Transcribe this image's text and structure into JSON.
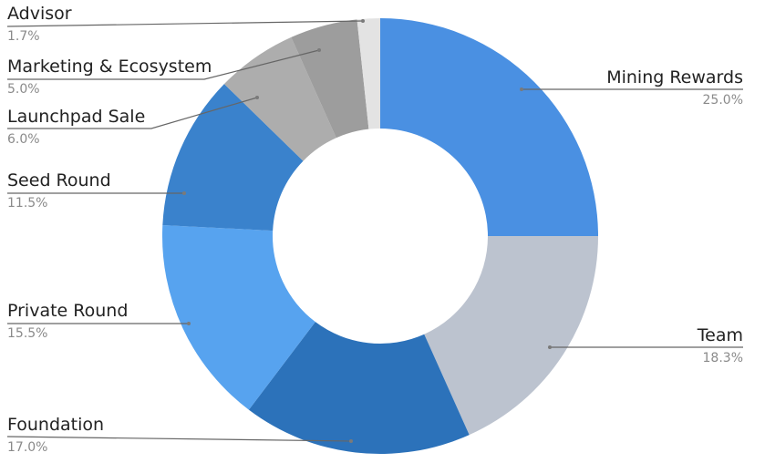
{
  "chart_data": {
    "type": "pie",
    "subtype": "donut",
    "title": "",
    "center": [
      417,
      259
    ],
    "outer_radius": 239,
    "inner_radius": 118,
    "start_angle_deg": 0,
    "direction": "clockwise",
    "slices": [
      {
        "label": "Mining Rewards",
        "value": 25.0,
        "pct_text": "25.0%",
        "color": "#4a90e2"
      },
      {
        "label": "Team",
        "value": 18.3,
        "pct_text": "18.3%",
        "color": "#bcc3cf"
      },
      {
        "label": "Foundation",
        "value": 17.0,
        "pct_text": "17.0%",
        "color": "#2c72ba"
      },
      {
        "label": "Private Round",
        "value": 15.5,
        "pct_text": "15.5%",
        "color": "#57a3ef"
      },
      {
        "label": "Seed Round",
        "value": 11.5,
        "pct_text": "11.5%",
        "color": "#3a82cc"
      },
      {
        "label": "Launchpad Sale",
        "value": 6.0,
        "pct_text": "6.0%",
        "color": "#adadad"
      },
      {
        "label": "Marketing & Ecosystem",
        "value": 5.0,
        "pct_text": "5.0%",
        "color": "#9d9d9d"
      },
      {
        "label": "Advisor",
        "value": 1.7,
        "pct_text": "1.7%",
        "color": "#e3e3e3"
      }
    ],
    "legend": "none (leader-line labels)"
  },
  "labels": {
    "advisor": {
      "name": "Advisor",
      "pct": "1.7%"
    },
    "marketing": {
      "name": "Marketing & Ecosystem",
      "pct": "5.0%"
    },
    "launchpad": {
      "name": "Launchpad Sale",
      "pct": "6.0%"
    },
    "seed": {
      "name": "Seed Round",
      "pct": "11.5%"
    },
    "private": {
      "name": "Private Round",
      "pct": "15.5%"
    },
    "foundation": {
      "name": "Foundation",
      "pct": "17.0%"
    },
    "mining": {
      "name": "Mining Rewards",
      "pct": "25.0%"
    },
    "team": {
      "name": "Team",
      "pct": "18.3%"
    }
  }
}
